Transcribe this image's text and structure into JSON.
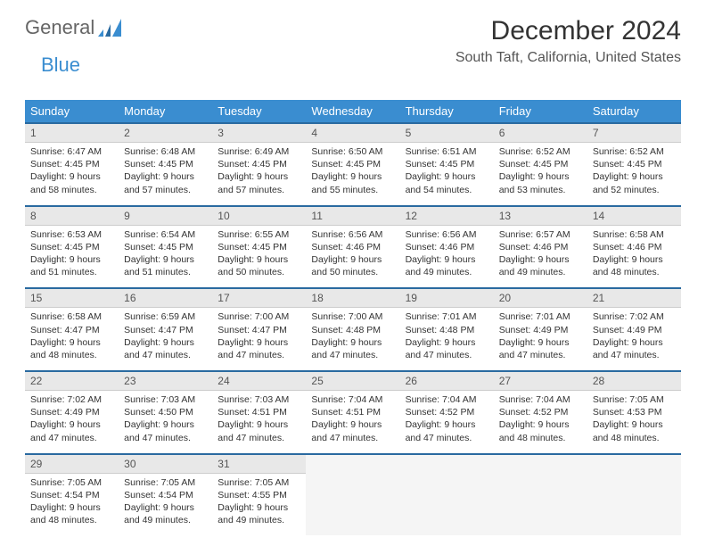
{
  "logo": {
    "word1": "General",
    "word2": "Blue"
  },
  "title": "December 2024",
  "location": "South Taft, California, United States",
  "colors": {
    "header_bg": "#3a8dd0",
    "header_text": "#ffffff",
    "date_row_bg": "#e8e8e8",
    "row_border": "#2a6aa0",
    "page_bg": "#ffffff",
    "text": "#333333"
  },
  "day_names": [
    "Sunday",
    "Monday",
    "Tuesday",
    "Wednesday",
    "Thursday",
    "Friday",
    "Saturday"
  ],
  "weeks": [
    [
      {
        "date": "1",
        "sunrise": "6:47 AM",
        "sunset": "4:45 PM",
        "daylight": "9 hours and 58 minutes."
      },
      {
        "date": "2",
        "sunrise": "6:48 AM",
        "sunset": "4:45 PM",
        "daylight": "9 hours and 57 minutes."
      },
      {
        "date": "3",
        "sunrise": "6:49 AM",
        "sunset": "4:45 PM",
        "daylight": "9 hours and 57 minutes."
      },
      {
        "date": "4",
        "sunrise": "6:50 AM",
        "sunset": "4:45 PM",
        "daylight": "9 hours and 55 minutes."
      },
      {
        "date": "5",
        "sunrise": "6:51 AM",
        "sunset": "4:45 PM",
        "daylight": "9 hours and 54 minutes."
      },
      {
        "date": "6",
        "sunrise": "6:52 AM",
        "sunset": "4:45 PM",
        "daylight": "9 hours and 53 minutes."
      },
      {
        "date": "7",
        "sunrise": "6:52 AM",
        "sunset": "4:45 PM",
        "daylight": "9 hours and 52 minutes."
      }
    ],
    [
      {
        "date": "8",
        "sunrise": "6:53 AM",
        "sunset": "4:45 PM",
        "daylight": "9 hours and 51 minutes."
      },
      {
        "date": "9",
        "sunrise": "6:54 AM",
        "sunset": "4:45 PM",
        "daylight": "9 hours and 51 minutes."
      },
      {
        "date": "10",
        "sunrise": "6:55 AM",
        "sunset": "4:45 PM",
        "daylight": "9 hours and 50 minutes."
      },
      {
        "date": "11",
        "sunrise": "6:56 AM",
        "sunset": "4:46 PM",
        "daylight": "9 hours and 50 minutes."
      },
      {
        "date": "12",
        "sunrise": "6:56 AM",
        "sunset": "4:46 PM",
        "daylight": "9 hours and 49 minutes."
      },
      {
        "date": "13",
        "sunrise": "6:57 AM",
        "sunset": "4:46 PM",
        "daylight": "9 hours and 49 minutes."
      },
      {
        "date": "14",
        "sunrise": "6:58 AM",
        "sunset": "4:46 PM",
        "daylight": "9 hours and 48 minutes."
      }
    ],
    [
      {
        "date": "15",
        "sunrise": "6:58 AM",
        "sunset": "4:47 PM",
        "daylight": "9 hours and 48 minutes."
      },
      {
        "date": "16",
        "sunrise": "6:59 AM",
        "sunset": "4:47 PM",
        "daylight": "9 hours and 47 minutes."
      },
      {
        "date": "17",
        "sunrise": "7:00 AM",
        "sunset": "4:47 PM",
        "daylight": "9 hours and 47 minutes."
      },
      {
        "date": "18",
        "sunrise": "7:00 AM",
        "sunset": "4:48 PM",
        "daylight": "9 hours and 47 minutes."
      },
      {
        "date": "19",
        "sunrise": "7:01 AM",
        "sunset": "4:48 PM",
        "daylight": "9 hours and 47 minutes."
      },
      {
        "date": "20",
        "sunrise": "7:01 AM",
        "sunset": "4:49 PM",
        "daylight": "9 hours and 47 minutes."
      },
      {
        "date": "21",
        "sunrise": "7:02 AM",
        "sunset": "4:49 PM",
        "daylight": "9 hours and 47 minutes."
      }
    ],
    [
      {
        "date": "22",
        "sunrise": "7:02 AM",
        "sunset": "4:49 PM",
        "daylight": "9 hours and 47 minutes."
      },
      {
        "date": "23",
        "sunrise": "7:03 AM",
        "sunset": "4:50 PM",
        "daylight": "9 hours and 47 minutes."
      },
      {
        "date": "24",
        "sunrise": "7:03 AM",
        "sunset": "4:51 PM",
        "daylight": "9 hours and 47 minutes."
      },
      {
        "date": "25",
        "sunrise": "7:04 AM",
        "sunset": "4:51 PM",
        "daylight": "9 hours and 47 minutes."
      },
      {
        "date": "26",
        "sunrise": "7:04 AM",
        "sunset": "4:52 PM",
        "daylight": "9 hours and 47 minutes."
      },
      {
        "date": "27",
        "sunrise": "7:04 AM",
        "sunset": "4:52 PM",
        "daylight": "9 hours and 48 minutes."
      },
      {
        "date": "28",
        "sunrise": "7:05 AM",
        "sunset": "4:53 PM",
        "daylight": "9 hours and 48 minutes."
      }
    ],
    [
      {
        "date": "29",
        "sunrise": "7:05 AM",
        "sunset": "4:54 PM",
        "daylight": "9 hours and 48 minutes."
      },
      {
        "date": "30",
        "sunrise": "7:05 AM",
        "sunset": "4:54 PM",
        "daylight": "9 hours and 49 minutes."
      },
      {
        "date": "31",
        "sunrise": "7:05 AM",
        "sunset": "4:55 PM",
        "daylight": "9 hours and 49 minutes."
      },
      null,
      null,
      null,
      null
    ]
  ],
  "labels": {
    "sunrise": "Sunrise:",
    "sunset": "Sunset:",
    "daylight": "Daylight:"
  }
}
